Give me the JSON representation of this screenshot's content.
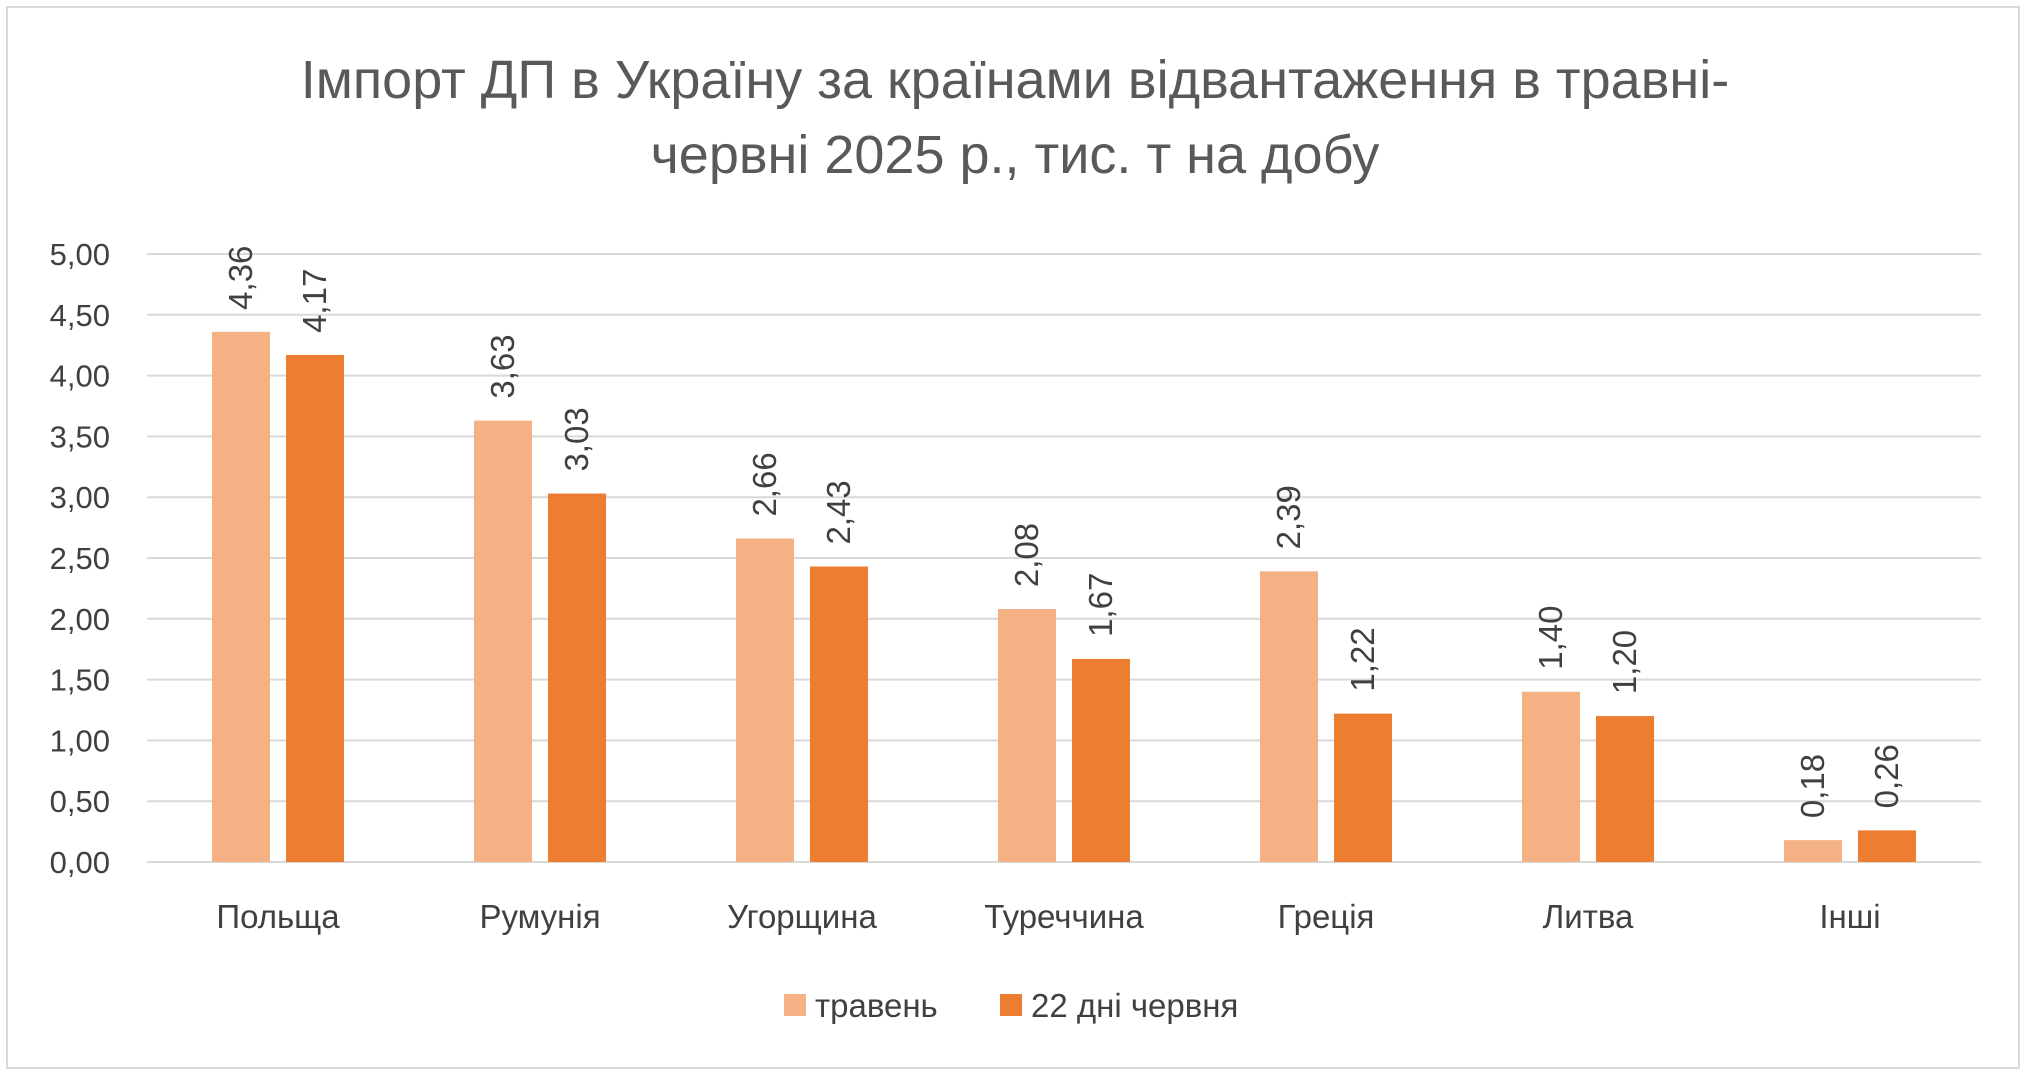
{
  "chart_data": {
    "type": "bar",
    "title": "Імпорт ДП в Україну за країнами відвантаження в травні-червні 2025 р., тис. т на добу",
    "title_lines": [
      "Імпорт ДП в Україну за країнами відвантаження в травні-",
      "червні 2025 р., тис. т на добу"
    ],
    "categories": [
      "Польща",
      "Румунія",
      "Угорщина",
      "Туреччина",
      "Греція",
      "Литва",
      "Інші"
    ],
    "series": [
      {
        "name": "травень",
        "color": "#f4b183",
        "values": [
          4.36,
          3.63,
          2.66,
          2.08,
          2.39,
          1.4,
          0.18
        ],
        "labels": [
          "4,36",
          "3,63",
          "2,66",
          "2,08",
          "2,39",
          "1,40",
          "0,18"
        ]
      },
      {
        "name": "22 дні червня",
        "color": "#ed7d31",
        "values": [
          4.17,
          3.03,
          2.43,
          1.67,
          1.22,
          1.2,
          0.26
        ],
        "labels": [
          "4,17",
          "3,03",
          "2,43",
          "1,67",
          "1,22",
          "1,20",
          "0,26"
        ]
      }
    ],
    "y_ticks": [
      0,
      0.5,
      1,
      1.5,
      2,
      2.5,
      3,
      3.5,
      4,
      4.5,
      5
    ],
    "y_tick_labels": [
      "0,00",
      "0,50",
      "1,00",
      "1,50",
      "2,00",
      "2,50",
      "3,00",
      "3,50",
      "4,00",
      "4,50",
      "5,00"
    ],
    "ylim": [
      0,
      5
    ],
    "xlabel": "",
    "ylabel": "",
    "grid": true,
    "legend_position": "bottom",
    "data_label_rotation": "vertical"
  }
}
